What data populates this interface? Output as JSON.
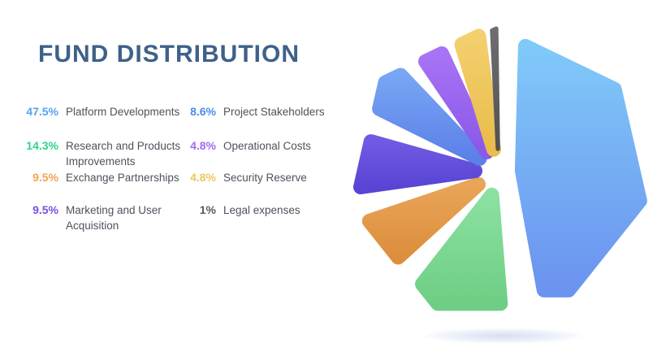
{
  "title": "FUND DISTRIBUTION",
  "theme": {
    "title_color": "#3E6189",
    "label_color": "#4D525B",
    "background": "#FFFFFF",
    "shadow_color": "#9DB4DE"
  },
  "chart_data": {
    "type": "pie",
    "title": "FUND DISTRIBUTION",
    "legend_position": "left",
    "start_angle_deg": 0,
    "direction": "clockwise",
    "style": "exploded pie with rounded heptagon outline and soft ground shadow",
    "slices": [
      {
        "label": "Platform Developments",
        "value": 47.5,
        "percent_label": "47.5%",
        "legend_column": 1,
        "legend_color": "#55A1F2",
        "gradient": [
          "#80C9F9",
          "#6B93EF"
        ]
      },
      {
        "label": "Research and Products Improvements",
        "value": 14.3,
        "percent_label": "14.3%",
        "legend_column": 1,
        "legend_color": "#2FD38A",
        "gradient": [
          "#8BE1A1",
          "#6ECE85"
        ]
      },
      {
        "label": "Exchange Partnerships",
        "value": 9.5,
        "percent_label": "9.5%",
        "legend_column": 1,
        "legend_color": "#F3A54E",
        "gradient": [
          "#E9A558",
          "#DC8E3C"
        ]
      },
      {
        "label": "Marketing and User Acquisition",
        "value": 9.5,
        "percent_label": "9.5%",
        "legend_column": 1,
        "legend_color": "#7850E0",
        "gradient": [
          "#7159E2",
          "#5845D5"
        ]
      },
      {
        "label": "Project Stakeholders",
        "value": 8.6,
        "percent_label": "8.6%",
        "legend_column": 2,
        "legend_color": "#4A8BF0",
        "gradient": [
          "#78A6F4",
          "#5B80E8"
        ]
      },
      {
        "label": "Operational Costs",
        "value": 4.8,
        "percent_label": "4.8%",
        "legend_column": 2,
        "legend_color": "#9D6CF2",
        "gradient": [
          "#A873F4",
          "#8A58EA"
        ]
      },
      {
        "label": "Security Reserve",
        "value": 4.8,
        "percent_label": "4.8%",
        "legend_column": 2,
        "legend_color": "#EFC75F",
        "gradient": [
          "#F3D06E",
          "#E9BC4B"
        ]
      },
      {
        "label": "Legal expenses",
        "value": 1,
        "percent_label": "1%",
        "legend_column": 2,
        "legend_color": "#555A64",
        "gradient": [
          "#6E6E72",
          "#505055"
        ]
      }
    ]
  }
}
